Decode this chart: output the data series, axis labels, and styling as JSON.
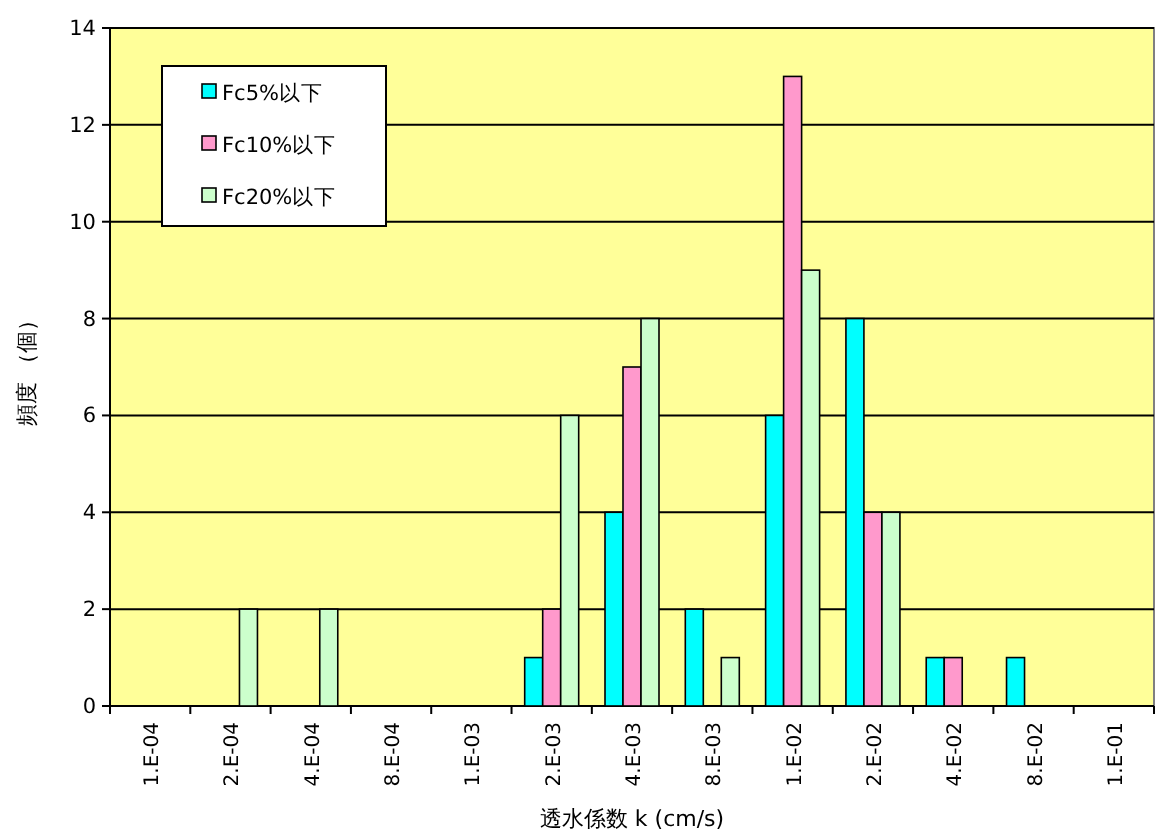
{
  "chart_data": {
    "type": "bar",
    "xlabel": "透水係数  k  (cm/s)",
    "ylabel": "頻度 （個）",
    "categories": [
      "1.E-04",
      "2.E-04",
      "4.E-04",
      "8.E-04",
      "1.E-03",
      "2.E-03",
      "4.E-03",
      "8.E-03",
      "1.E-02",
      "2.E-02",
      "4.E-02",
      "8.E-02",
      "1.E-01"
    ],
    "series": [
      {
        "name": "Fc5%以下",
        "color": "#00ffff",
        "values": [
          0,
          0,
          0,
          0,
          0,
          1,
          4,
          2,
          6,
          8,
          1,
          1,
          0
        ]
      },
      {
        "name": "Fc10%以下",
        "color": "#ff99cc",
        "values": [
          0,
          0,
          0,
          0,
          0,
          2,
          7,
          0,
          13,
          4,
          1,
          0,
          0
        ]
      },
      {
        "name": "Fc20%以下",
        "color": "#ccffcc",
        "values": [
          0,
          2,
          2,
          0,
          0,
          6,
          8,
          1,
          9,
          4,
          0,
          0,
          0
        ]
      }
    ],
    "ylim": [
      0,
      14
    ],
    "yticks": [
      0,
      2,
      4,
      6,
      8,
      10,
      12,
      14
    ],
    "grid": "y",
    "legend": "top left"
  }
}
